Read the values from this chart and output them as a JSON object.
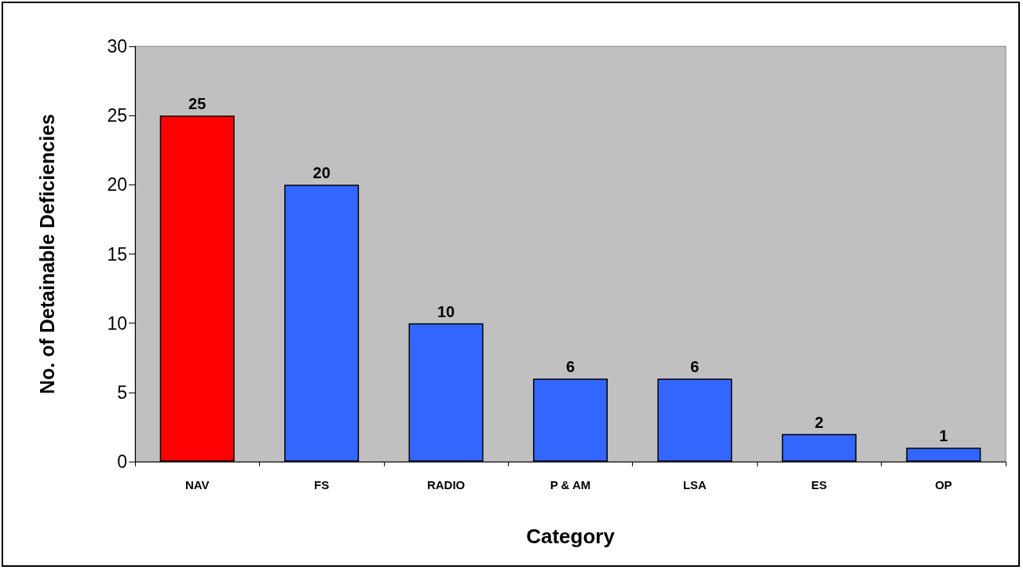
{
  "chart_data": {
    "type": "bar",
    "xlabel": "Category",
    "ylabel": "No. of Detainable Deficiencies",
    "categories": [
      "NAV",
      "FS",
      "RADIO",
      "P & AM",
      "LSA",
      "ES",
      "OP"
    ],
    "values": [
      25,
      20,
      10,
      6,
      6,
      2,
      1
    ],
    "colors": [
      "#ff0000",
      "#3366ff",
      "#3366ff",
      "#3366ff",
      "#3366ff",
      "#3366ff",
      "#3366ff"
    ],
    "ylim": [
      0,
      30
    ],
    "yticks": [
      0,
      5,
      10,
      15,
      20,
      25,
      30
    ],
    "grid": false,
    "data_labels": true
  }
}
